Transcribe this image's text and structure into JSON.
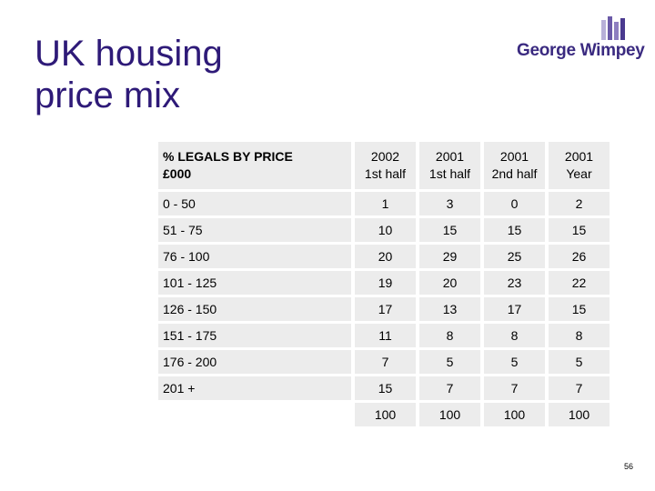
{
  "slide": {
    "title_line1": "UK housing",
    "title_line2": "price mix",
    "logo_text": "George Wimpey",
    "page_number": "56"
  },
  "table": {
    "header_label_line1": "% LEGALS BY PRICE",
    "header_label_line2": "£000",
    "columns": [
      {
        "line1": "2002",
        "line2": "1st half"
      },
      {
        "line1": "2001",
        "line2": "1st half"
      },
      {
        "line1": "2001",
        "line2": "2nd half"
      },
      {
        "line1": "2001",
        "line2": "Year"
      }
    ],
    "rows": [
      {
        "label": "0 - 50",
        "values": [
          "1",
          "3",
          "0",
          "2"
        ]
      },
      {
        "label": "51 - 75",
        "values": [
          "10",
          "15",
          "15",
          "15"
        ]
      },
      {
        "label": "76 - 100",
        "values": [
          "20",
          "29",
          "25",
          "26"
        ]
      },
      {
        "label": "101 - 125",
        "values": [
          "19",
          "20",
          "23",
          "22"
        ]
      },
      {
        "label": "126 - 150",
        "values": [
          "17",
          "13",
          "17",
          "15"
        ]
      },
      {
        "label": "151 - 175",
        "values": [
          "11",
          "8",
          "8",
          "8"
        ]
      },
      {
        "label": "176 - 200",
        "values": [
          "7",
          "5",
          "5",
          "5"
        ]
      },
      {
        "label": "201 +",
        "values": [
          "15",
          "7",
          "7",
          "7"
        ]
      }
    ],
    "totals": [
      "100",
      "100",
      "100",
      "100"
    ]
  },
  "colors": {
    "title": "#2e1a78",
    "cell_background": "#ececec",
    "logo_purple": "#3a2a80"
  }
}
